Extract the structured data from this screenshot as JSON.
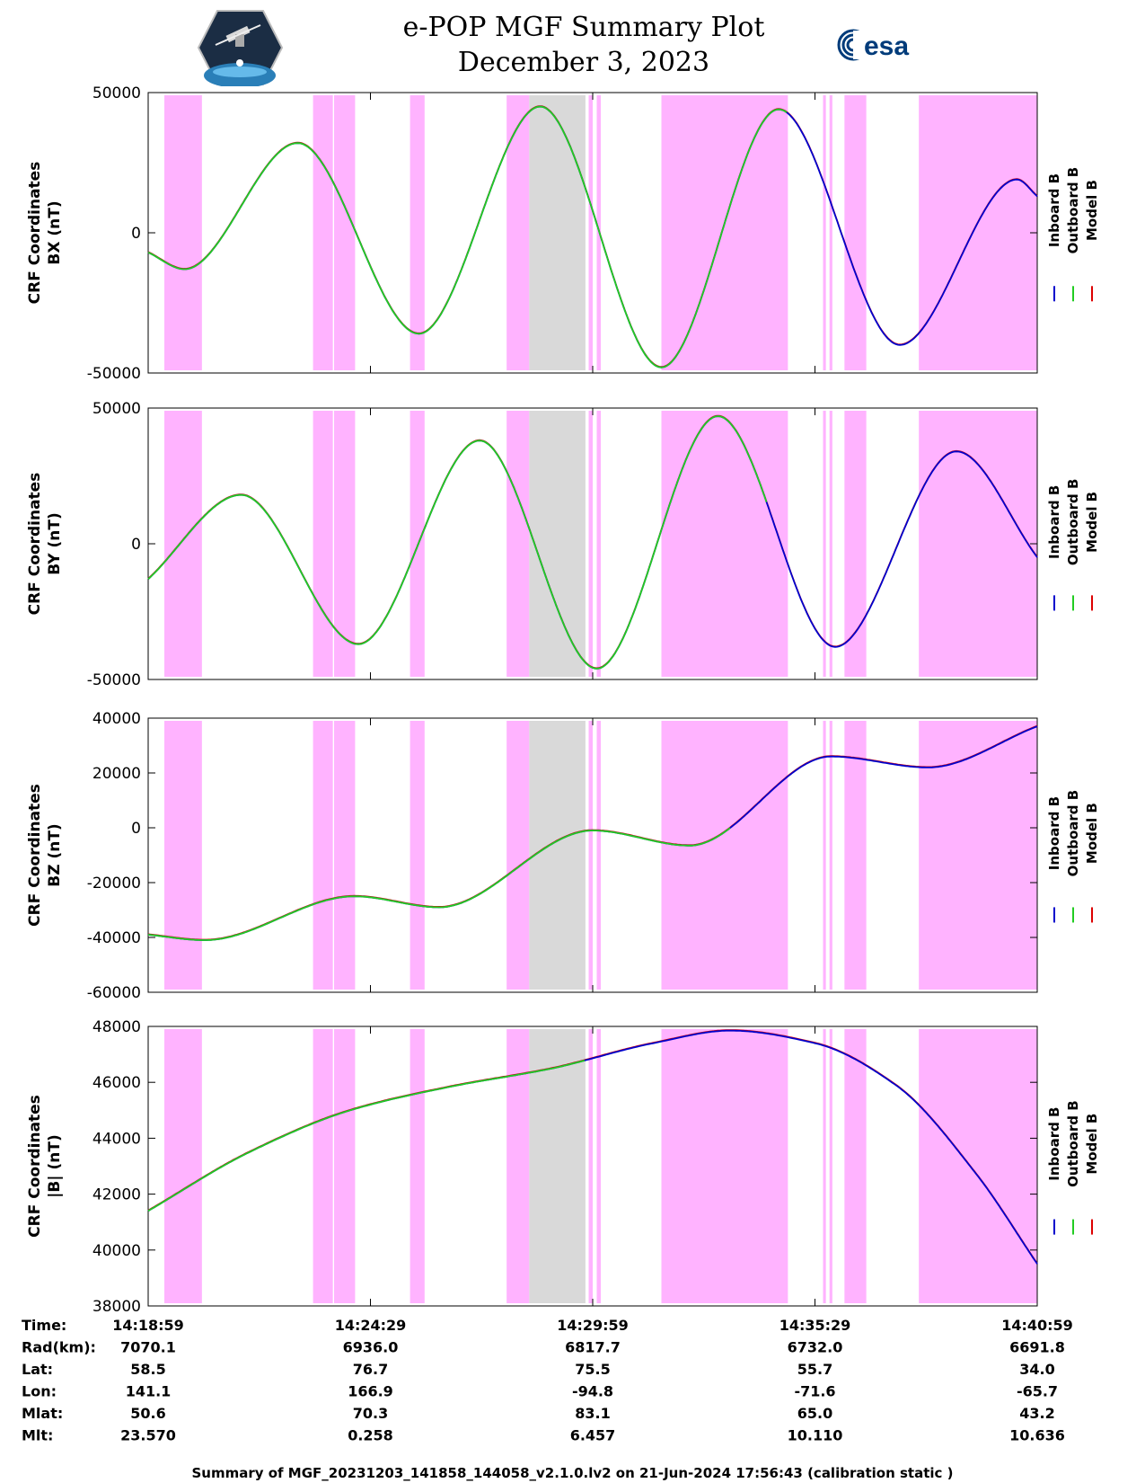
{
  "header": {
    "title": "e-POP MGF Summary Plot",
    "date": "December 3, 2023"
  },
  "logos": {
    "epop_icon": "satellite-logo-icon",
    "esa_icon": "esa-logo-icon",
    "esa_text": "esa"
  },
  "colors": {
    "inboard": "#0000cc",
    "outboard": "#22cc22",
    "model": "#dd0000",
    "flag_magenta": "#ffb3ff",
    "flag_gray": "#d9d9d9"
  },
  "chart_data": {
    "type": "line",
    "x_unit": "minutes after 14:18:59",
    "x_range": [
      0,
      22
    ],
    "x_ticks": [
      0,
      5.5,
      11,
      16.5,
      22
    ],
    "legend": [
      "Inboard B",
      "Outboard B",
      "Model B"
    ],
    "flag_intervals_magenta": [
      [
        0.4,
        1.33
      ],
      [
        4.08,
        4.57
      ],
      [
        4.6,
        5.12
      ],
      [
        6.48,
        6.84
      ],
      [
        8.87,
        9.43
      ],
      [
        10.9,
        11.0
      ],
      [
        11.1,
        11.2
      ],
      [
        12.7,
        15.83
      ],
      [
        16.7,
        16.77
      ],
      [
        16.86,
        16.93
      ],
      [
        17.23,
        17.77
      ],
      [
        19.07,
        22.2
      ]
    ],
    "flag_intervals_gray": [
      [
        9.43,
        10.82
      ]
    ],
    "outboard_end_minutes": [
      15.8,
      15.3,
      14.4,
      10.8
    ],
    "panels": [
      {
        "ylabel": [
          "CRF Coordinates",
          "BX (nT)"
        ],
        "ylim": [
          -50000,
          50000
        ],
        "yticks": [
          -50000,
          0,
          50000
        ],
        "x": [
          0,
          0.9,
          3.7,
          6.7,
          9.7,
          12.7,
          15.6,
          18.6,
          21.5,
          22
        ],
        "values": [
          -7000,
          -13000,
          32000,
          -36000,
          45000,
          -48000,
          44000,
          -40000,
          19000,
          13000
        ]
      },
      {
        "ylabel": [
          "CRF Coordinates",
          "BY (nT)"
        ],
        "ylim": [
          -50000,
          50000
        ],
        "yticks": [
          -50000,
          0,
          50000
        ],
        "x": [
          0,
          2.3,
          5.2,
          8.2,
          11.1,
          14.1,
          17.0,
          20.0,
          22
        ],
        "values": [
          -13000,
          18000,
          -37000,
          38000,
          -46000,
          47000,
          -38000,
          34000,
          -5000
        ]
      },
      {
        "ylabel": [
          "CRF Coordinates",
          "BZ (nT)"
        ],
        "ylim": [
          -60000,
          40000
        ],
        "yticks": [
          -60000,
          -40000,
          -20000,
          0,
          20000,
          40000
        ],
        "x": [
          0,
          1.4,
          5.1,
          7.2,
          11.0,
          13.4,
          16.9,
          19.3,
          22
        ],
        "values": [
          -39000,
          -41000,
          -25000,
          -29000,
          -1000,
          -6500,
          26000,
          22000,
          37000
        ]
      },
      {
        "ylabel": [
          "CRF Coordinates",
          "|B| (nT)"
        ],
        "ylim": [
          38000,
          48000
        ],
        "yticks": [
          38000,
          40000,
          42000,
          44000,
          46000,
          48000
        ],
        "x": [
          0,
          2.5,
          5.0,
          7.5,
          10.0,
          12.5,
          14.4,
          16.5,
          18.5,
          20.5,
          22
        ],
        "values": [
          41400,
          43500,
          45000,
          45850,
          46500,
          47400,
          47850,
          47400,
          45900,
          42700,
          39500
        ]
      }
    ]
  },
  "ephemeris": {
    "rows": [
      {
        "label": "Time:",
        "values": [
          "14:18:59",
          "14:24:29",
          "14:29:59",
          "14:35:29",
          "14:40:59"
        ]
      },
      {
        "label": "Rad(km):",
        "values": [
          "7070.1",
          "6936.0",
          "6817.7",
          "6732.0",
          "6691.8"
        ]
      },
      {
        "label": "Lat:",
        "values": [
          "58.5",
          "76.7",
          "75.5",
          "55.7",
          "34.0"
        ]
      },
      {
        "label": "Lon:",
        "values": [
          "141.1",
          "166.9",
          "-94.8",
          "-71.6",
          "-65.7"
        ]
      },
      {
        "label": "Mlat:",
        "values": [
          "50.6",
          "70.3",
          "83.1",
          "65.0",
          "43.2"
        ]
      },
      {
        "label": "Mlt:",
        "values": [
          "23.570",
          "0.258",
          "6.457",
          "10.110",
          "10.636"
        ]
      }
    ]
  },
  "footer": "Summary of MGF_20231203_141858_144058_v2.1.0.lv2 on 21-Jun-2024 17:56:43 (calibration static )"
}
